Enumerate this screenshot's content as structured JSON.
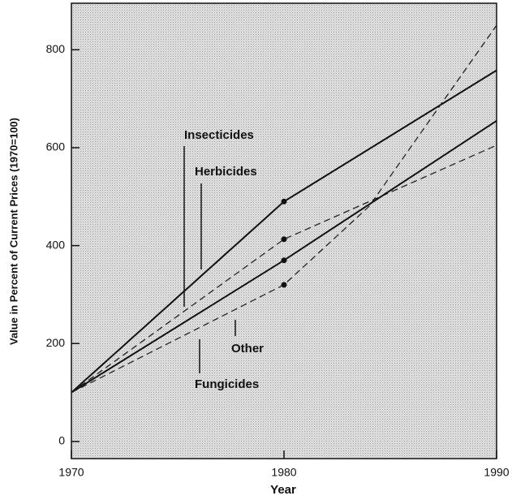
{
  "chart_data": {
    "type": "line",
    "x_label": "Year",
    "y_label": "Value in Percent of Current Prices (1970=100)",
    "xlim": [
      1970,
      1990
    ],
    "xticks": [
      1970,
      1980,
      1990
    ],
    "ylim": [
      -35,
      895
    ],
    "yticks": [
      0,
      200,
      400,
      600,
      800
    ],
    "series": [
      {
        "name": "Insecticides",
        "color": "#111111",
        "dash": false,
        "x": [
          1970,
          1980,
          1990
        ],
        "values": [
          100,
          490,
          758
        ]
      },
      {
        "name": "Herbicides",
        "color": "#222222",
        "dash": true,
        "x": [
          1970,
          1980,
          1990
        ],
        "values": [
          100,
          413,
          605
        ]
      },
      {
        "name": "Fungicides",
        "color": "#111111",
        "dash": false,
        "x": [
          1970,
          1980,
          1990
        ],
        "values": [
          100,
          370,
          655
        ]
      },
      {
        "name": "Other",
        "color": "#222222",
        "dash": true,
        "x": [
          1970,
          1980,
          1984,
          1990
        ],
        "values": [
          100,
          320,
          480,
          850
        ]
      }
    ]
  }
}
